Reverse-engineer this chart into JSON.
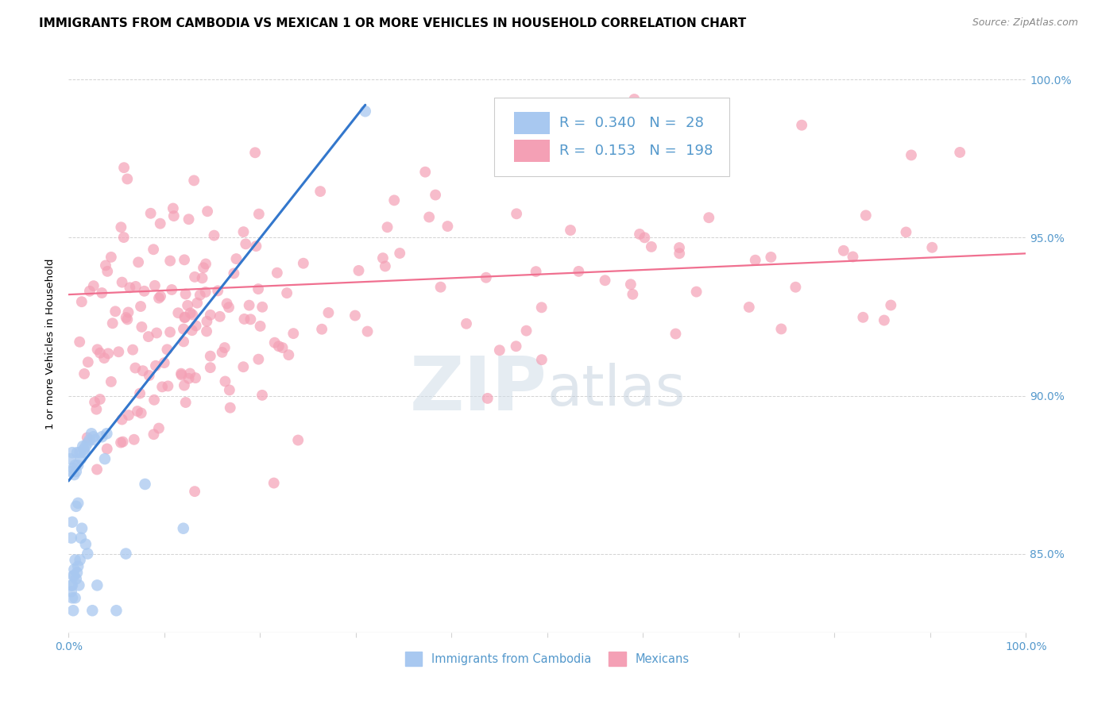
{
  "title": "IMMIGRANTS FROM CAMBODIA VS MEXICAN 1 OR MORE VEHICLES IN HOUSEHOLD CORRELATION CHART",
  "source_text": "Source: ZipAtlas.com",
  "ylabel": "1 or more Vehicles in Household",
  "xlim": [
    0.0,
    1.0
  ],
  "ylim": [
    0.825,
    1.008
  ],
  "yticks": [
    0.85,
    0.9,
    0.95,
    1.0
  ],
  "ytick_labels": [
    "85.0%",
    "90.0%",
    "95.0%",
    "100.0%"
  ],
  "xtick_labels_show": [
    "0.0%",
    "100.0%"
  ],
  "cambodia_color": "#a8c8f0",
  "mexican_color": "#f4a0b5",
  "cambodia_line_color": "#3377cc",
  "mexican_line_color": "#f07090",
  "background_color": "#ffffff",
  "R_cambodia": 0.34,
  "N_cambodia": 28,
  "R_mexican": 0.153,
  "N_mexican": 198,
  "title_fontsize": 11,
  "axis_label_color": "#5599cc",
  "legend_label1": "Immigrants from Cambodia",
  "legend_label2": "Mexicans",
  "cambodia_x": [
    0.002,
    0.003,
    0.004,
    0.005,
    0.006,
    0.007,
    0.008,
    0.009,
    0.01,
    0.012,
    0.013,
    0.015,
    0.016,
    0.017,
    0.018,
    0.02,
    0.022,
    0.024,
    0.026,
    0.028,
    0.035,
    0.038,
    0.04,
    0.05,
    0.06,
    0.08,
    0.12,
    0.31
  ],
  "cambodia_y": [
    0.88,
    0.876,
    0.882,
    0.877,
    0.875,
    0.878,
    0.876,
    0.882,
    0.878,
    0.882,
    0.88,
    0.884,
    0.883,
    0.882,
    0.884,
    0.885,
    0.886,
    0.888,
    0.887,
    0.886,
    0.887,
    0.88,
    0.888,
    0.832,
    0.85,
    0.872,
    0.858,
    0.99
  ],
  "cam_line_x0": 0.0,
  "cam_line_y0": 0.873,
  "cam_line_x1": 0.31,
  "cam_line_y1": 0.992,
  "mex_line_x0": 0.0,
  "mex_line_y0": 0.932,
  "mex_line_x1": 1.0,
  "mex_line_y1": 0.945
}
